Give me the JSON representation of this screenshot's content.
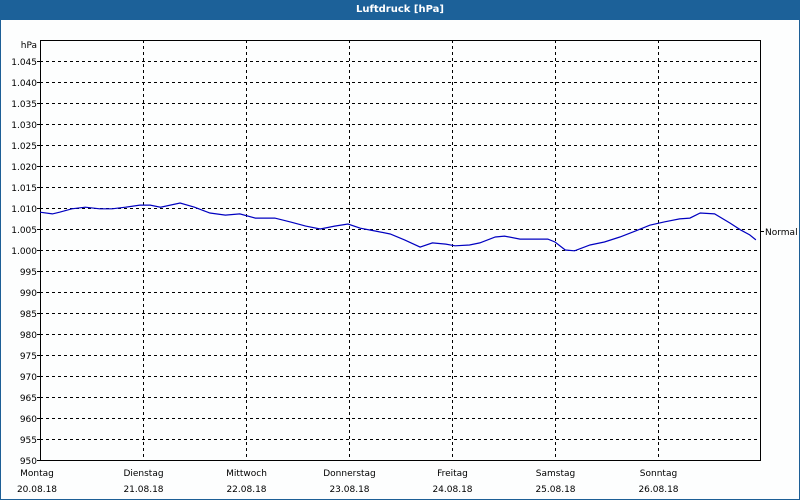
{
  "window": {
    "title": "Luftdruck [hPa]"
  },
  "chart": {
    "unit_label": "hPa",
    "reference_label": "Normal",
    "line_color": "#0000c0",
    "title_bar_color": "#1c6199"
  },
  "chart_data": {
    "type": "line",
    "title": "Luftdruck [hPa]",
    "xlabel": "",
    "ylabel": "hPa",
    "ylim": [
      950,
      1050
    ],
    "grid": true,
    "y_ticks": [
      "1.045",
      "1.040",
      "1.035",
      "1.030",
      "1.025",
      "1.020",
      "1.015",
      "1.010",
      "1.005",
      "1.000",
      "995",
      "990",
      "985",
      "980",
      "975",
      "970",
      "965",
      "960",
      "955",
      "950"
    ],
    "y_tick_values": [
      1045,
      1040,
      1035,
      1030,
      1025,
      1020,
      1015,
      1010,
      1005,
      1000,
      995,
      990,
      985,
      980,
      975,
      970,
      965,
      960,
      955,
      950
    ],
    "categories": [
      {
        "day": "Montag",
        "date": "20.08.18"
      },
      {
        "day": "Dienstag",
        "date": "21.08.18"
      },
      {
        "day": "Mittwoch",
        "date": "22.08.18"
      },
      {
        "day": "Donnerstag",
        "date": "23.08.18"
      },
      {
        "day": "Freitag",
        "date": "24.08.18"
      },
      {
        "day": "Samstag",
        "date": "25.08.18"
      },
      {
        "day": "Sonntag",
        "date": "26.08.18"
      }
    ],
    "annotations": [
      {
        "label": "Normal",
        "y": 1003
      }
    ],
    "series": [
      {
        "name": "Luftdruck",
        "x_days": [
          0,
          0.12,
          0.19,
          0.31,
          0.44,
          0.58,
          0.7,
          0.83,
          0.97,
          1.07,
          1.17,
          1.36,
          1.5,
          1.65,
          1.8,
          1.94,
          2.09,
          2.28,
          2.43,
          2.58,
          2.72,
          2.86,
          2.99,
          3.11,
          3.26,
          3.4,
          3.54,
          3.69,
          3.81,
          3.94,
          4.03,
          4.17,
          4.27,
          4.42,
          4.51,
          4.66,
          4.81,
          4.93,
          5.0,
          5.1,
          5.19,
          5.34,
          5.48,
          5.63,
          5.78,
          5.92,
          6.06,
          6.21,
          6.31,
          6.41,
          6.55,
          6.7,
          6.8,
          6.89,
          6.95
        ],
        "values": [
          1009.0,
          1008.6,
          1009.0,
          1009.8,
          1010.2,
          1009.8,
          1009.8,
          1010.2,
          1010.7,
          1010.7,
          1010.2,
          1011.2,
          1010.2,
          1008.8,
          1008.3,
          1008.6,
          1007.6,
          1007.6,
          1006.7,
          1005.7,
          1005.0,
          1005.7,
          1006.2,
          1005.2,
          1004.5,
          1003.8,
          1002.4,
          1000.7,
          1001.7,
          1001.4,
          1001.0,
          1001.2,
          1001.7,
          1003.1,
          1003.3,
          1002.6,
          1002.6,
          1002.6,
          1001.9,
          1000.0,
          999.8,
          1001.2,
          1001.9,
          1003.1,
          1004.5,
          1005.9,
          1006.7,
          1007.4,
          1007.6,
          1008.8,
          1008.6,
          1006.4,
          1004.8,
          1003.6,
          1002.4
        ]
      }
    ]
  }
}
